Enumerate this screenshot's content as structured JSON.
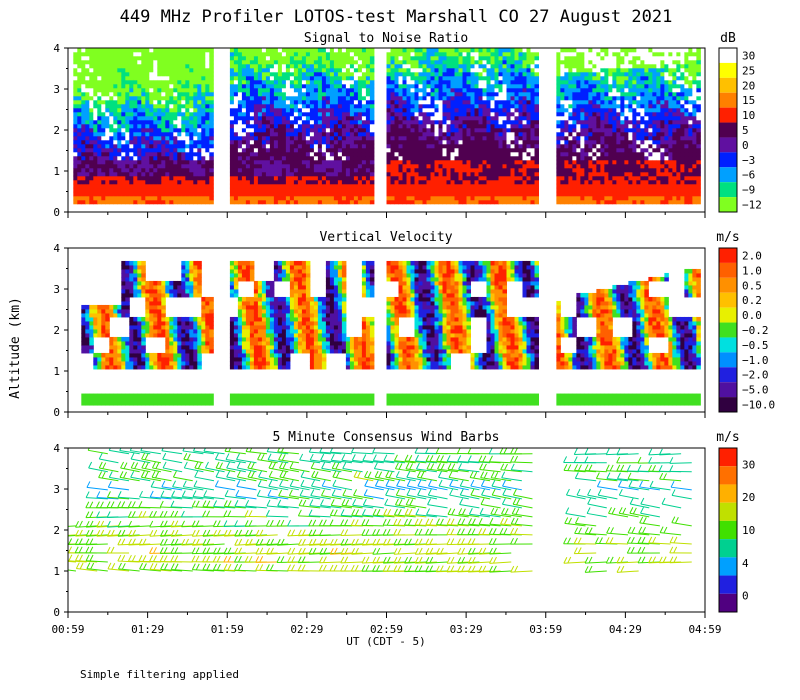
{
  "title": "449 MHz Profiler LOTOS-test Marshall CO 27 August 2021",
  "footer_note": "Simple filtering applied",
  "ylabel": "Altitude (km)",
  "xlabel": "UT  (CDT - 5)",
  "x_ticks": [
    "00:59",
    "01:29",
    "01:59",
    "02:29",
    "02:59",
    "03:29",
    "03:59",
    "04:29",
    "04:59"
  ],
  "y_ticks": [
    "0",
    "1",
    "2",
    "3",
    "4"
  ],
  "chart_data": [
    {
      "type": "heatmap",
      "title": "Signal to Noise Ratio",
      "ylim": [
        0,
        4
      ],
      "data_gaps_x": [
        [
          "01:53",
          "02:00"
        ],
        [
          "02:54",
          "02:59"
        ],
        [
          "03:56",
          "04:03"
        ]
      ],
      "colorbar": {
        "unit": "dB",
        "labels": [
          "30",
          "25",
          "20",
          "15",
          "10",
          "5",
          "0",
          "−3",
          "−6",
          "−9",
          "−12"
        ],
        "colors": [
          "#ffffff",
          "#ffff00",
          "#ffc000",
          "#ff8000",
          "#ff2000",
          "#500050",
          "#6010a0",
          "#0020ff",
          "#00a0ff",
          "#00e080",
          "#80ff20"
        ]
      }
    },
    {
      "type": "heatmap",
      "title": "Vertical Velocity",
      "ylim": [
        0,
        4
      ],
      "colorbar": {
        "unit": "m/s",
        "labels": [
          "2.0",
          "1.0",
          "0.5",
          "0.2",
          "0.0",
          "−0.2",
          "−0.5",
          "−1.0",
          "−2.0",
          "−5.0",
          "−10.0"
        ],
        "colors": [
          "#ff2000",
          "#ff6000",
          "#ff9000",
          "#ffc000",
          "#e8f000",
          "#40e020",
          "#00e0e0",
          "#0090ff",
          "#2020e0",
          "#5010a0",
          "#300040"
        ]
      }
    },
    {
      "type": "scatter",
      "title": "5 Minute Consensus Wind Barbs",
      "ylim": [
        0,
        4
      ],
      "colorbar": {
        "unit": "m/s",
        "labels": [
          "30",
          "20",
          "10",
          "4",
          "0"
        ],
        "colors": [
          "#ff2000",
          "#ff7000",
          "#ffb000",
          "#c0e000",
          "#40e000",
          "#00d090",
          "#00a0ff",
          "#2020e0",
          "#500080"
        ]
      }
    }
  ]
}
